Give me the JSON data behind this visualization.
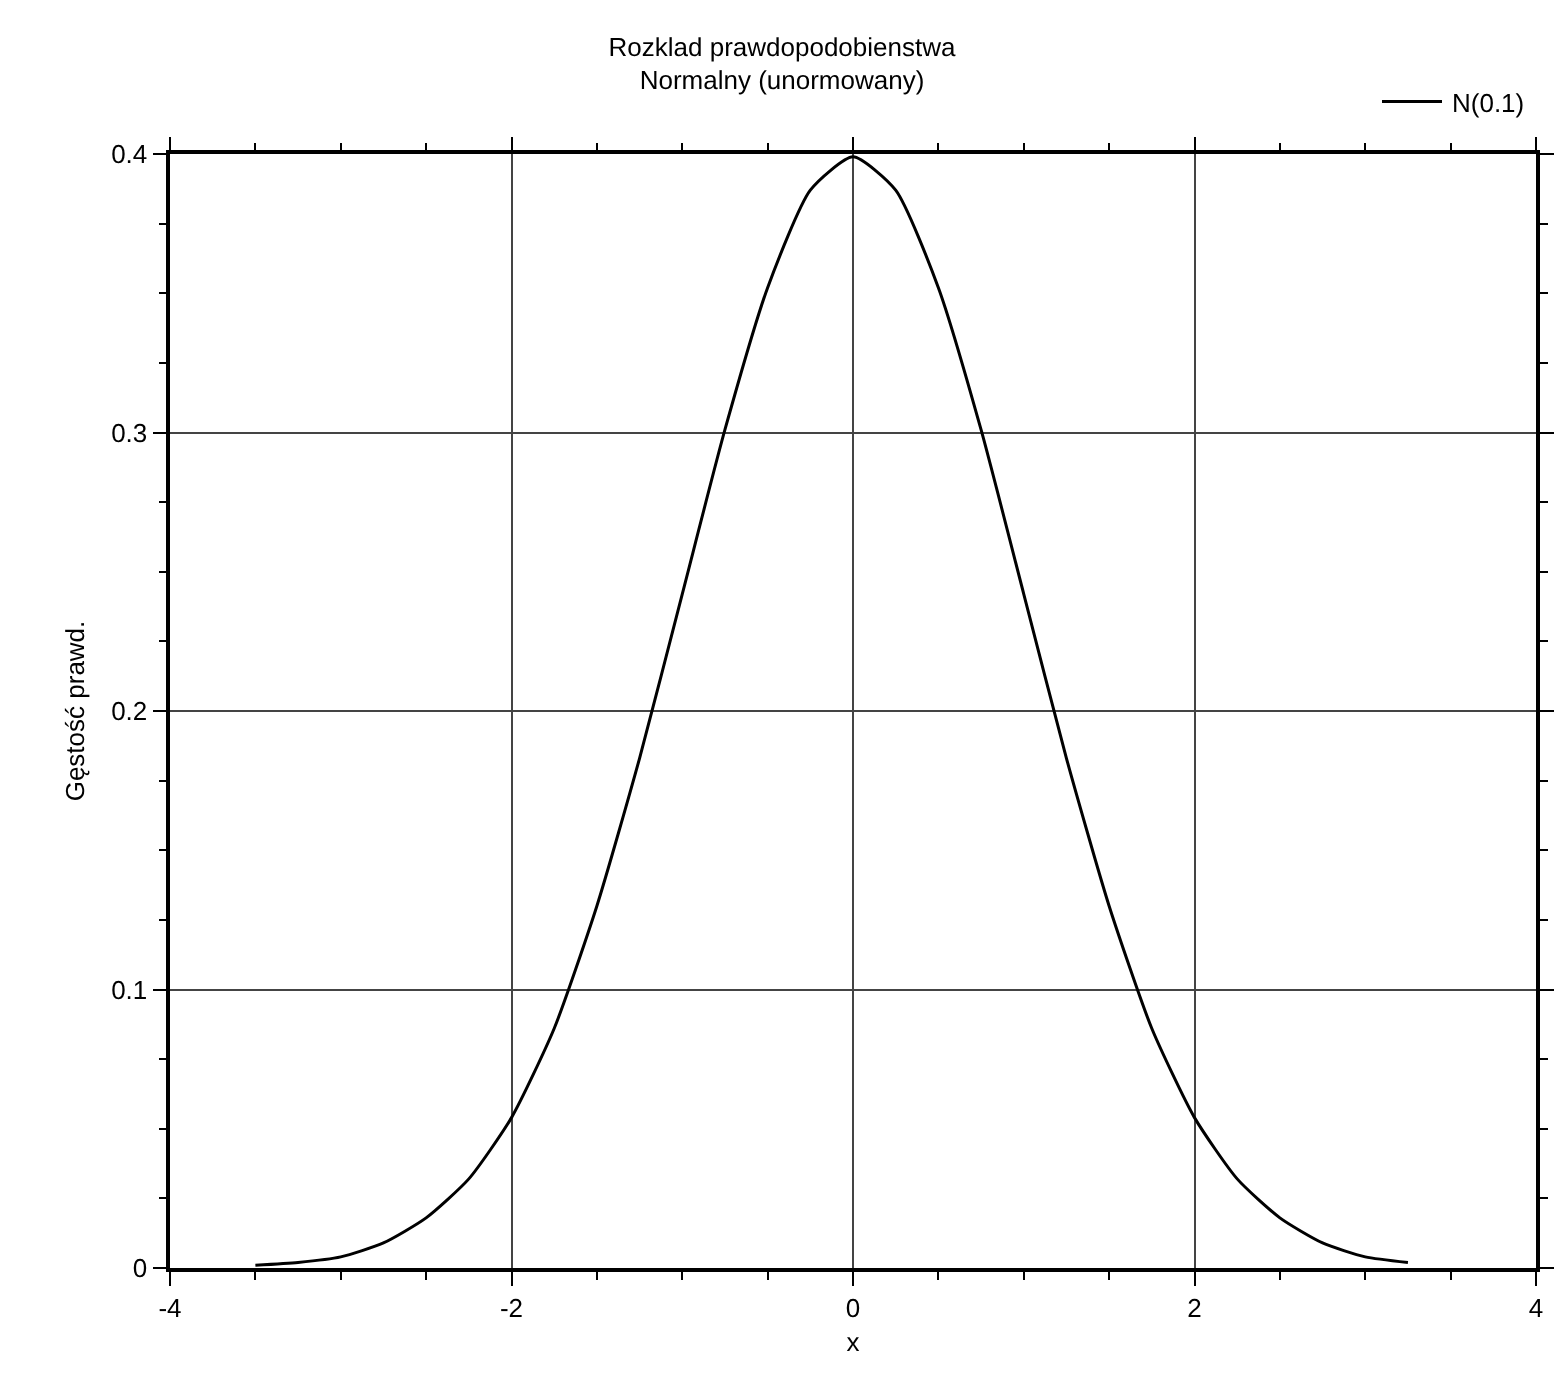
{
  "chart_data": {
    "type": "line",
    "title": "Rozklad prawdopodobienstwa\nNormalny (unormowany)",
    "xlabel": "x",
    "ylabel": "Gęstość prawd.",
    "x": [
      -3.5,
      -3.25,
      -3,
      -2.75,
      -2.5,
      -2.25,
      -2,
      -1.75,
      -1.5,
      -1.25,
      -1,
      -0.75,
      -0.5,
      -0.25,
      0,
      0.25,
      0.5,
      0.75,
      1,
      1.25,
      1.5,
      1.75,
      2,
      2.25,
      2.5,
      2.75,
      3,
      3.25
    ],
    "series": [
      {
        "name": "N(0.1)",
        "color": "#000000",
        "values": [
          0.001,
          0.002,
          0.004,
          0.009,
          0.018,
          0.032,
          0.054,
          0.086,
          0.13,
          0.183,
          0.242,
          0.301,
          0.352,
          0.387,
          0.399,
          0.387,
          0.352,
          0.301,
          0.242,
          0.183,
          0.13,
          0.086,
          0.054,
          0.032,
          0.018,
          0.009,
          0.004,
          0.002
        ]
      }
    ],
    "xlim": [
      -4,
      4
    ],
    "xticks": [
      -4,
      -2,
      0,
      2,
      4
    ],
    "ylim": [
      0,
      0.4
    ],
    "yticks": [
      0,
      0.1,
      0.2,
      0.3,
      0.4
    ],
    "grid": true,
    "legend": "top right",
    "marker": "none",
    "line_style": "solid"
  }
}
